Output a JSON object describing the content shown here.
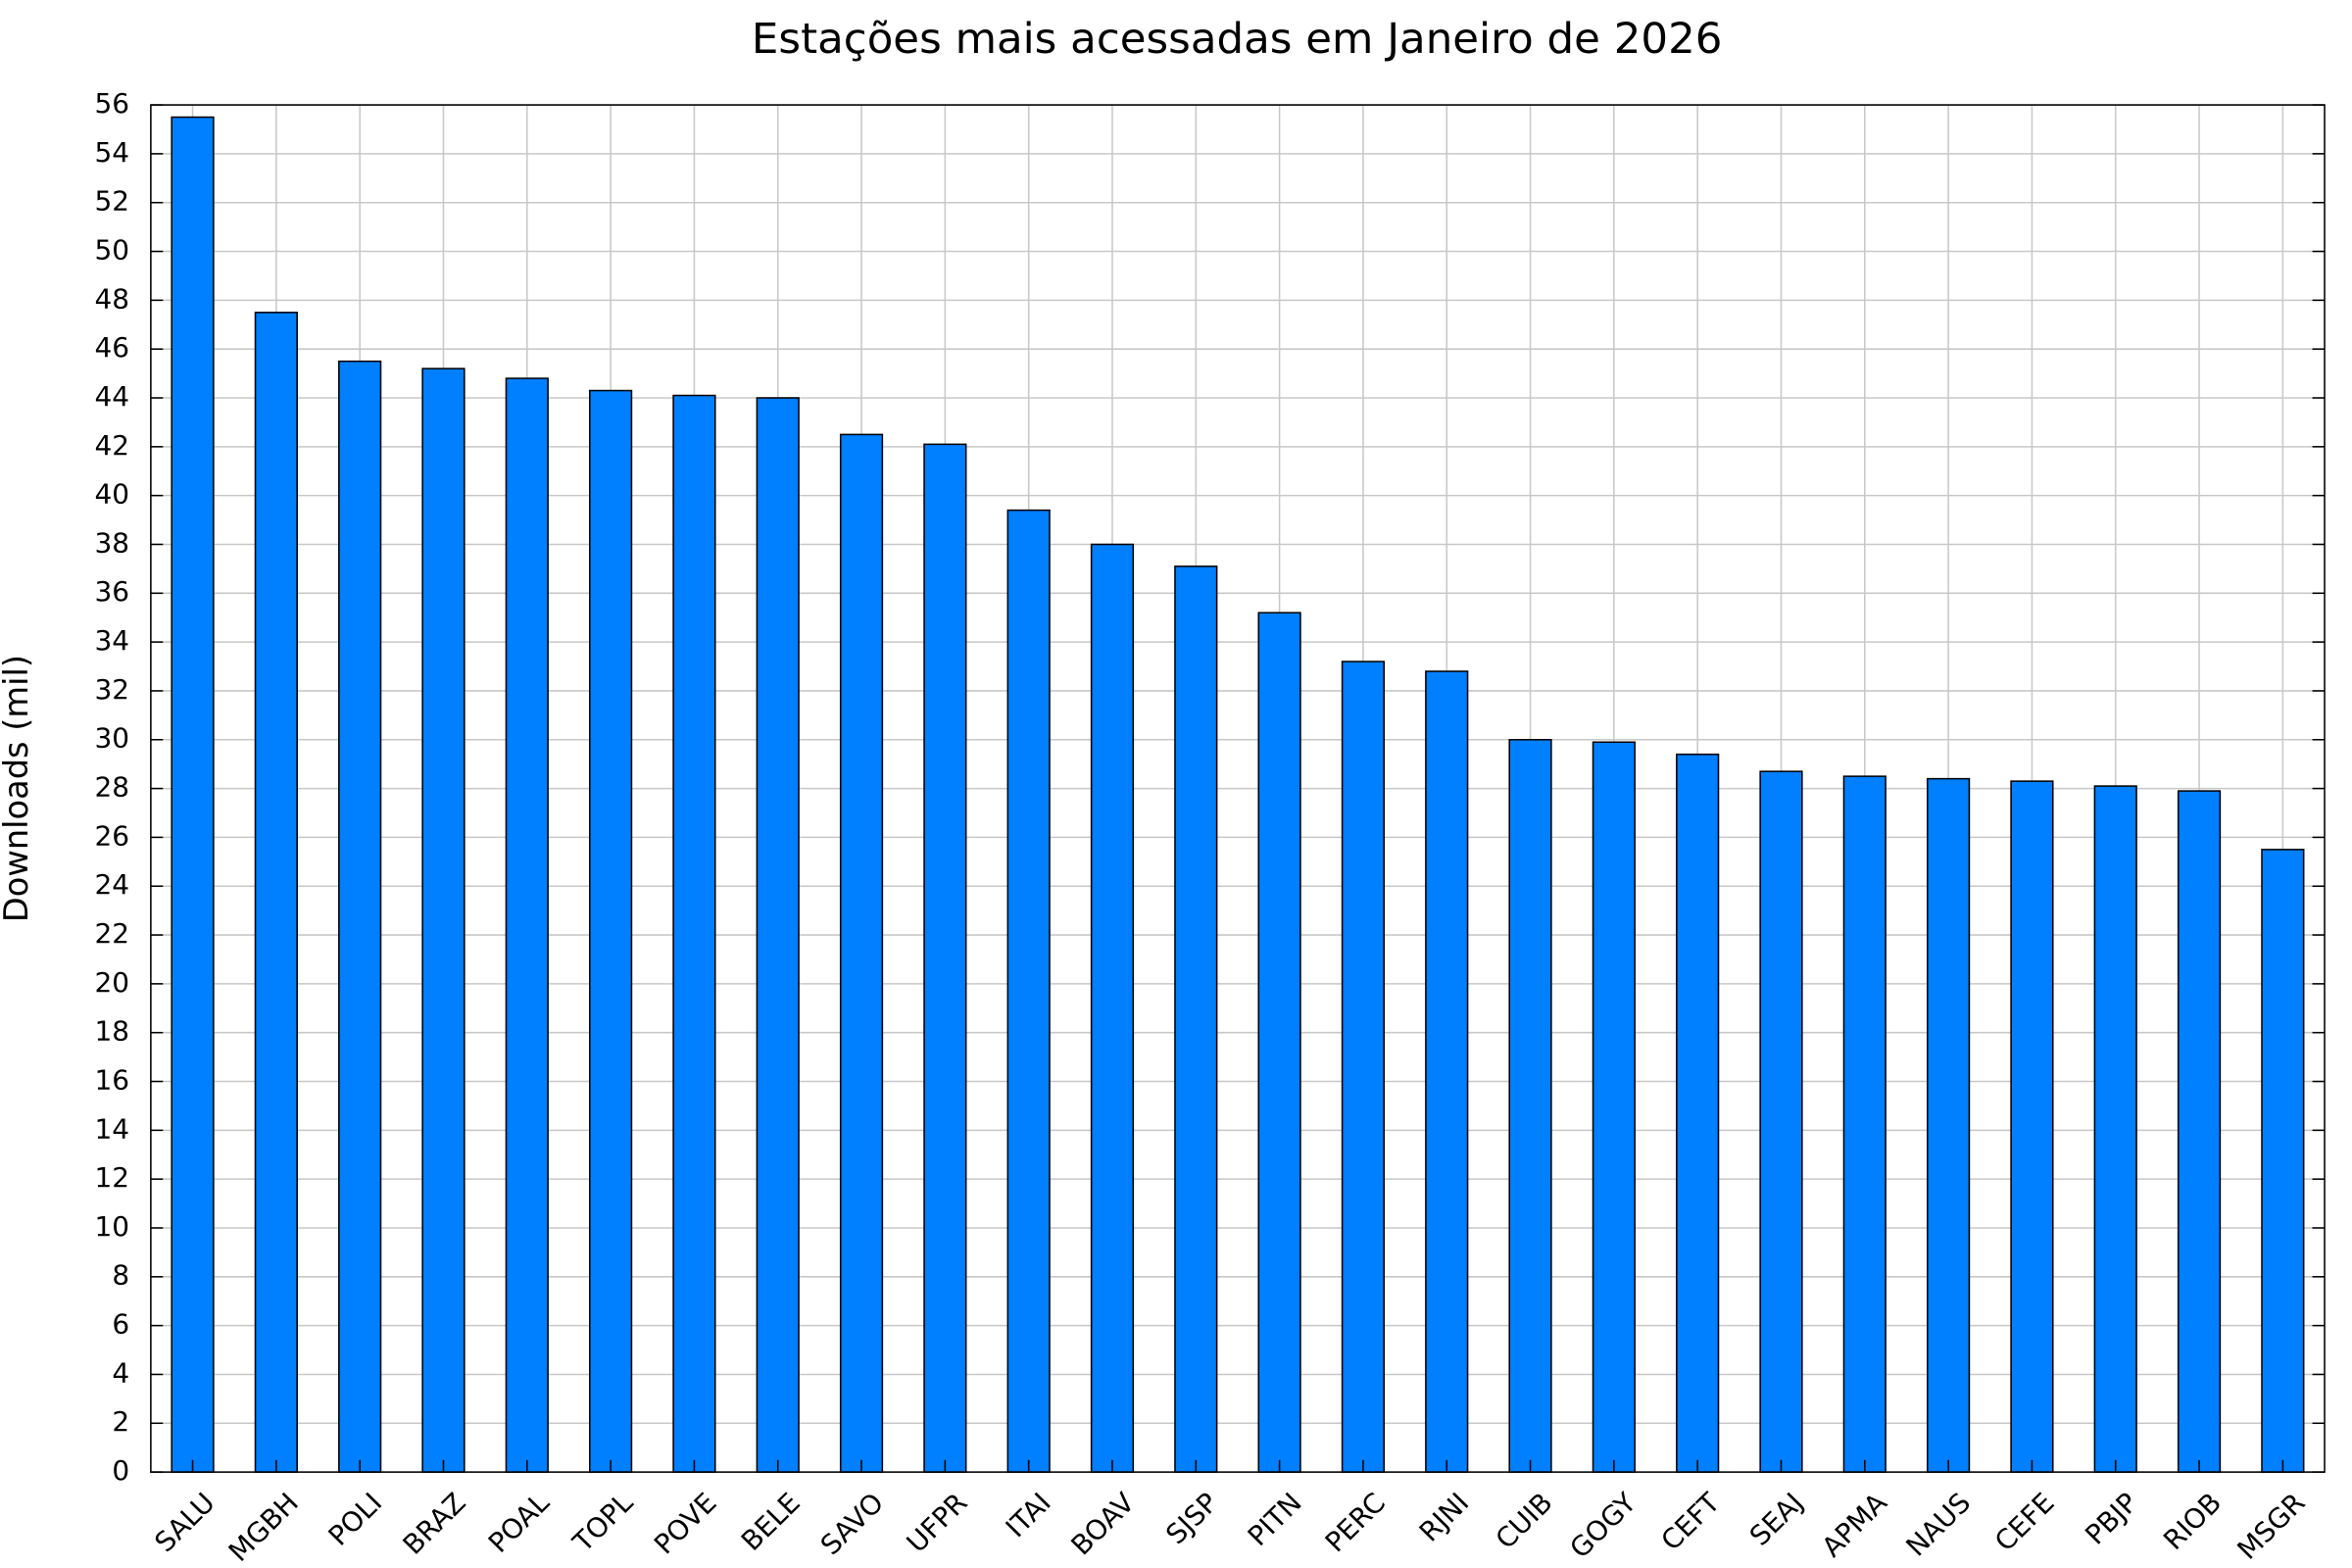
{
  "chart_data": {
    "type": "bar",
    "title": "Estações mais acessadas em Janeiro de 2026",
    "y_label": "Downloads (mil)",
    "categories": [
      "SALU",
      "MGBH",
      "POLI",
      "BRAZ",
      "POAL",
      "TOPL",
      "POVE",
      "BELE",
      "SAVO",
      "UFPR",
      "ITAI",
      "BOAV",
      "SJSP",
      "PITN",
      "PERC",
      "RJNI",
      "CUIB",
      "GOGY",
      "CEFT",
      "SEAJ",
      "APMA",
      "NAUS",
      "CEFE",
      "PBJP",
      "RIOB",
      "MSGR"
    ],
    "values": [
      55.5,
      47.5,
      45.5,
      45.2,
      44.8,
      44.3,
      44.1,
      44.0,
      42.5,
      42.1,
      39.4,
      38.0,
      37.1,
      35.2,
      33.2,
      32.8,
      30.0,
      29.9,
      29.4,
      28.7,
      28.5,
      28.4,
      28.3,
      28.1,
      27.9,
      25.5
    ],
    "color": "#007fff",
    "ylim": [
      0,
      56
    ],
    "yticks": [
      0,
      2,
      4,
      6,
      8,
      10,
      12,
      14,
      16,
      18,
      20,
      22,
      24,
      26,
      28,
      30,
      32,
      34,
      36,
      38,
      40,
      42,
      44,
      46,
      48,
      50,
      52,
      54,
      56
    ],
    "grid": true
  }
}
